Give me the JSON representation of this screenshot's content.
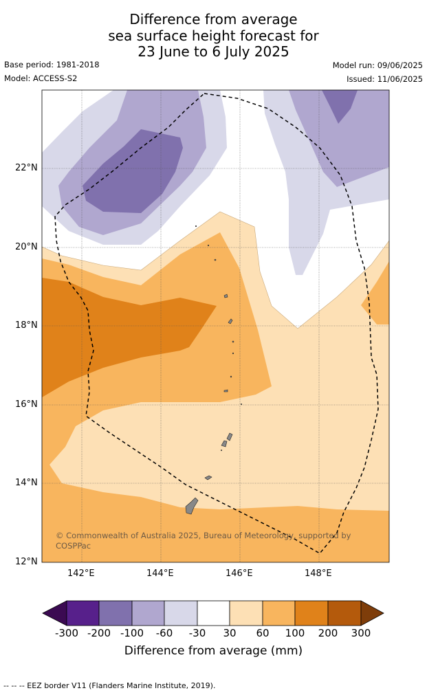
{
  "title": {
    "line1": "Difference from average",
    "line2": "sea surface height forecast for",
    "line3": "23 June to 6 July 2025"
  },
  "meta": {
    "base_period": "Base period: 1981-2018",
    "model": "Model: ACCESS-S2",
    "model_run": "Model run: 09/06/2025",
    "issued": "Issued: 11/06/2025"
  },
  "map": {
    "lat_labels": [
      "22°N",
      "20°N",
      "18°N",
      "16°N",
      "14°N",
      "12°N"
    ],
    "lon_labels": [
      "142°E",
      "144°E",
      "146°E",
      "148°E"
    ],
    "copyright": "© Commonwealth of Australia 2025, Bureau of Meteorology, supported by COSPPac"
  },
  "colorbar": {
    "labels": [
      "-300",
      "-200",
      "-100",
      "-60",
      "-30",
      "30",
      "60",
      "100",
      "200",
      "300"
    ],
    "colors": [
      "#3b0a52",
      "#57208b",
      "#8071ad",
      "#b0a7cf",
      "#d8d8e9",
      "#ffffff",
      "#fde0b5",
      "#f8b55e",
      "#e0821a",
      "#b45a0c",
      "#7e3d0a"
    ],
    "title": "Difference from average (mm)"
  },
  "footer": {
    "legend": "--  --  -- EEZ border V11 (Flanders Marine Institute, 2019)."
  }
}
